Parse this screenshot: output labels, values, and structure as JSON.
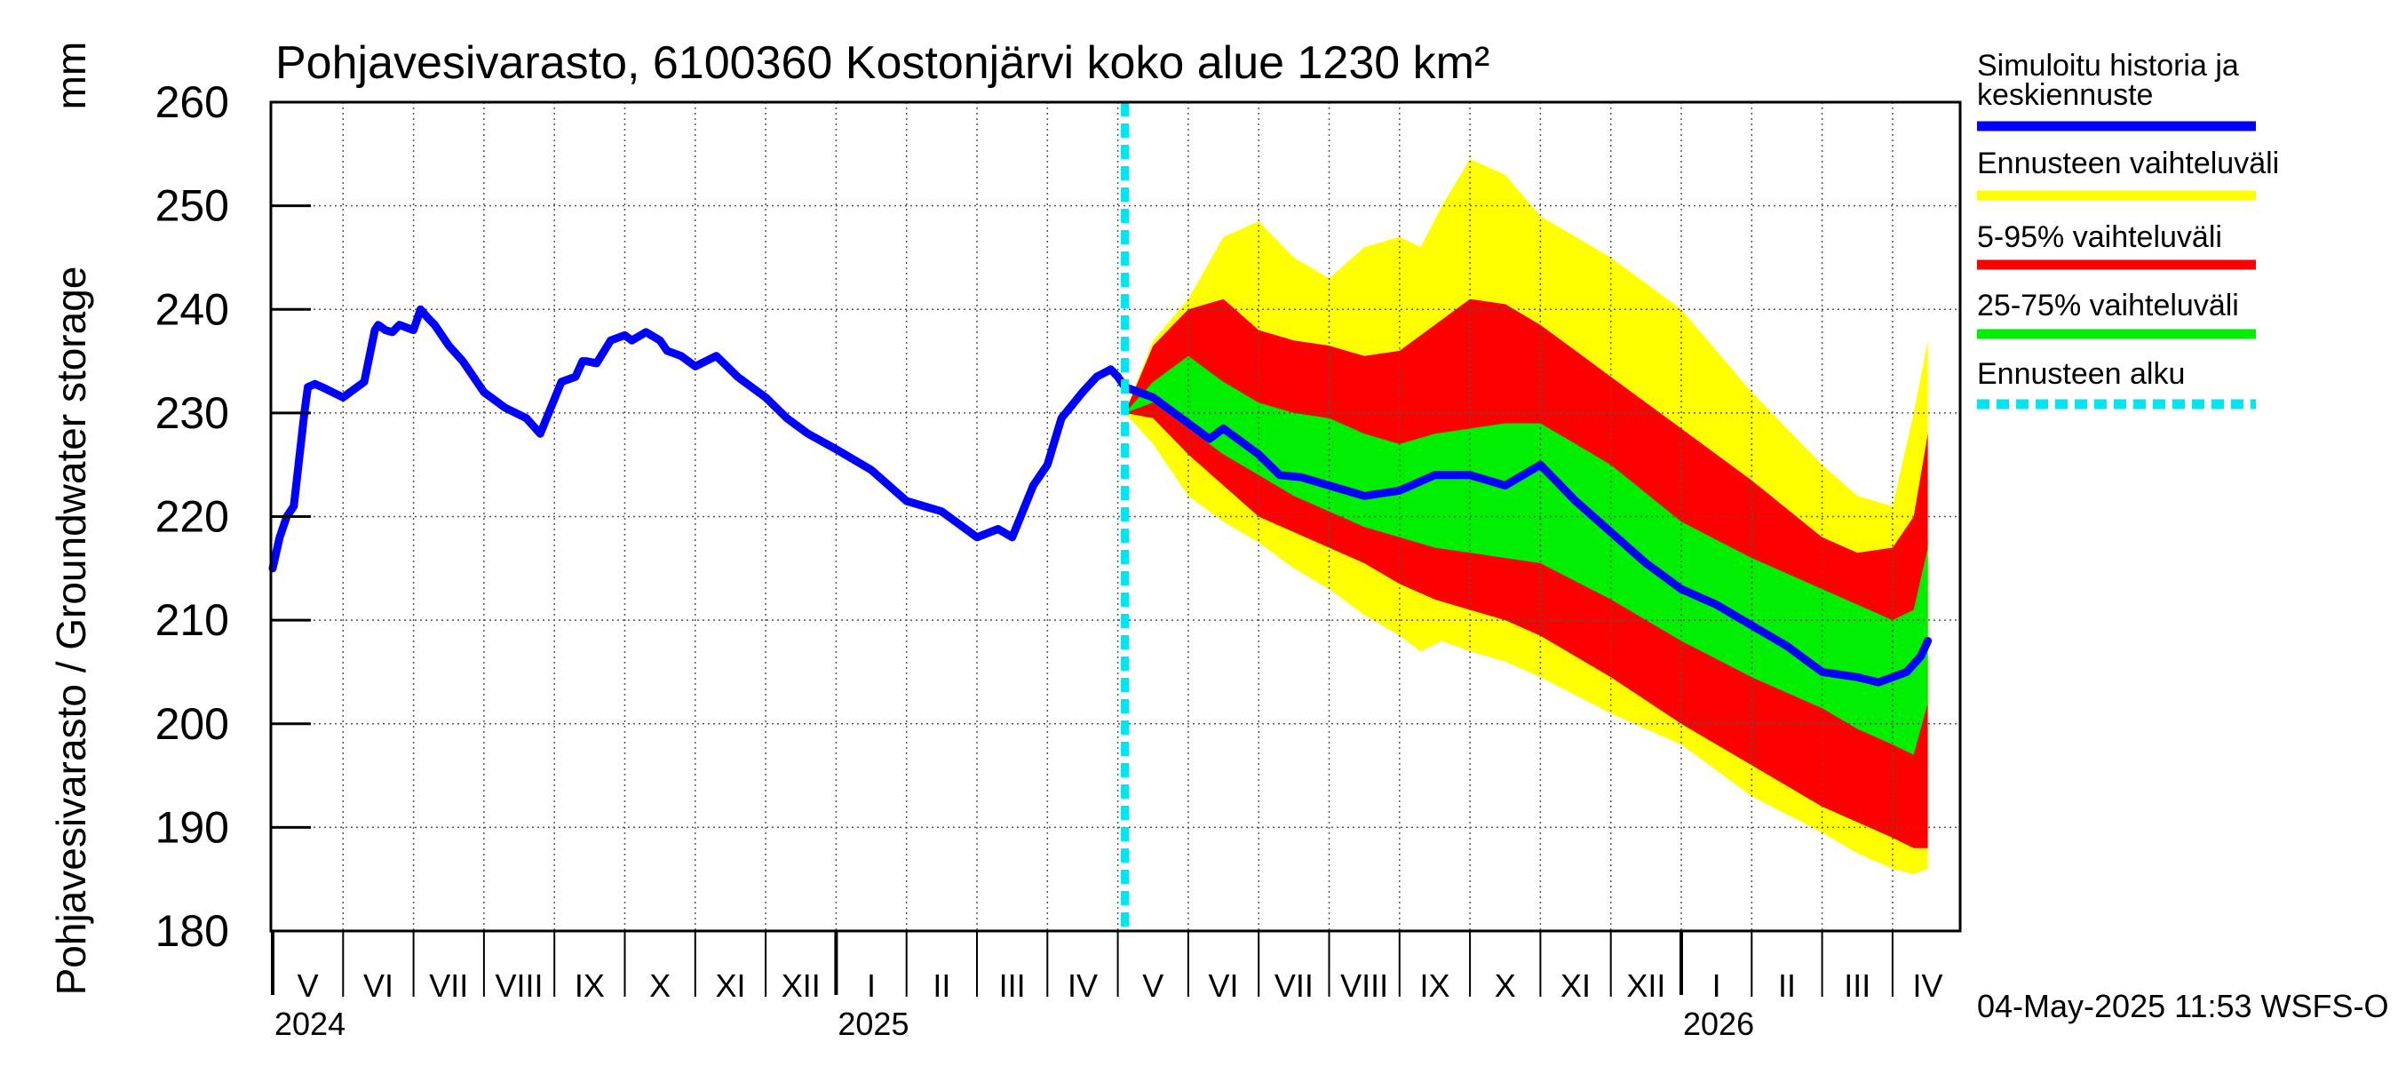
{
  "chart_data": {
    "type": "area",
    "title": "Pohjavesivarasto, 6100360 Kostonjärvi koko alue 1230 km²",
    "ylabel": "Pohjavesivarasto / Groundwater storage",
    "yunit": "mm",
    "ylim": [
      180,
      260
    ],
    "yticks": [
      180,
      190,
      200,
      210,
      220,
      230,
      240,
      250,
      260
    ],
    "grid": true,
    "x_range_months": [
      0,
      23.5
    ],
    "month_ticks": [
      {
        "label": "V",
        "m": 0
      },
      {
        "label": "VI",
        "m": 1
      },
      {
        "label": "VII",
        "m": 2
      },
      {
        "label": "VIII",
        "m": 3
      },
      {
        "label": "IX",
        "m": 4
      },
      {
        "label": "X",
        "m": 5
      },
      {
        "label": "XI",
        "m": 6
      },
      {
        "label": "XII",
        "m": 7
      },
      {
        "label": "I",
        "m": 8
      },
      {
        "label": "II",
        "m": 9
      },
      {
        "label": "III",
        "m": 10
      },
      {
        "label": "IV",
        "m": 11
      },
      {
        "label": "V",
        "m": 12
      },
      {
        "label": "VI",
        "m": 13
      },
      {
        "label": "VII",
        "m": 14
      },
      {
        "label": "VIII",
        "m": 15
      },
      {
        "label": "IX",
        "m": 16
      },
      {
        "label": "X",
        "m": 17
      },
      {
        "label": "XI",
        "m": 18
      },
      {
        "label": "XII",
        "m": 19
      },
      {
        "label": "I",
        "m": 20
      },
      {
        "label": "II",
        "m": 21
      },
      {
        "label": "III",
        "m": 22
      },
      {
        "label": "IV",
        "m": 23
      }
    ],
    "year_labels": [
      {
        "label": "2024",
        "m": 0
      },
      {
        "label": "2025",
        "m": 8
      },
      {
        "label": "2026",
        "m": 20
      }
    ],
    "forecast_start_m": 12.1,
    "legend_position": "right",
    "legend": [
      {
        "label": "Simuloitu historia ja keskiennuste",
        "lines": [
          "Simuloitu historia ja",
          "keskiennuste"
        ],
        "color": "#0000ff",
        "style": "solid"
      },
      {
        "label": "Ennusteen vaihteluväli",
        "lines": [
          "Ennusteen vaihteluväli"
        ],
        "color": "#ffff00",
        "style": "solid"
      },
      {
        "label": "5-95% vaihteluväli",
        "lines": [
          "5-95% vaihteluväli"
        ],
        "color": "#ff0000",
        "style": "solid"
      },
      {
        "label": "25-75% vaihteluväli",
        "lines": [
          "25-75% vaihteluväli"
        ],
        "color": "#00ee00",
        "style": "solid"
      },
      {
        "label": "Ennusteen alku",
        "lines": [
          "Ennusteen alku"
        ],
        "color": "#00e5ee",
        "style": "dashed"
      }
    ],
    "footer": "04-May-2025 11:53 WSFS-O",
    "series": [
      {
        "name": "Simuloitu historia ja keskiennuste",
        "color": "#0000ff",
        "x": [
          0,
          0.1,
          0.2,
          0.3,
          0.45,
          0.5,
          0.6,
          0.7,
          1.0,
          1.1,
          1.3,
          1.45,
          1.5,
          1.6,
          1.7,
          1.8,
          2.0,
          2.1,
          2.2,
          2.3,
          2.5,
          2.7,
          3.0,
          3.3,
          3.6,
          3.8,
          4.1,
          4.3,
          4.4,
          4.45,
          4.6,
          4.8,
          5.0,
          5.1,
          5.3,
          5.5,
          5.6,
          5.8,
          6.0,
          6.3,
          6.6,
          6.8,
          7.0,
          7.3,
          7.6,
          8.0,
          8.5,
          9.0,
          9.5,
          10.0,
          10.3,
          10.5,
          10.8,
          11.0,
          11.2,
          11.5,
          11.7,
          11.9,
          12.0,
          12.1,
          12.3,
          12.5,
          12.8,
          13.0,
          13.3,
          13.5,
          14.0,
          14.3,
          14.6,
          15.0,
          15.5,
          16.0,
          16.5,
          17.0,
          17.5,
          18.0,
          18.5,
          19.0,
          19.5,
          20.0,
          20.5,
          21.0,
          21.5,
          22.0,
          22.5,
          22.8,
          23.0,
          23.2,
          23.4,
          23.5
        ],
        "y": [
          215,
          218,
          220,
          221,
          230,
          232.5,
          232.8,
          232.5,
          231.5,
          232,
          233,
          238,
          238.5,
          238,
          237.8,
          238.5,
          238,
          240,
          239.2,
          238.5,
          236.5,
          235,
          232,
          230.5,
          229.5,
          228,
          233,
          233.5,
          235,
          235,
          234.8,
          237,
          237.5,
          237,
          237.8,
          237,
          236,
          235.5,
          234.5,
          235.5,
          233.5,
          232.5,
          231.5,
          229.5,
          228,
          226.5,
          224.5,
          221.5,
          220.5,
          218,
          218.8,
          218,
          223,
          225,
          229.5,
          232,
          233.5,
          234.2,
          233.5,
          232.5,
          232,
          231.5,
          230,
          229,
          227.5,
          228.5,
          226,
          224,
          223.8,
          223,
          222,
          222.5,
          224,
          224,
          223,
          225,
          221.5,
          218.5,
          215.5,
          213,
          211.5,
          209.5,
          207.5,
          205,
          204.5,
          204,
          204.5,
          205,
          206.5,
          208
        ]
      }
    ],
    "bands": [
      {
        "name": "Ennusteen vaihteluväli",
        "color": "#ffff00",
        "x": [
          12.1,
          12.5,
          13.0,
          13.5,
          14.0,
          14.5,
          15.0,
          15.5,
          16.0,
          16.3,
          16.6,
          17.0,
          17.5,
          18.0,
          19.0,
          20.0,
          21.0,
          22.0,
          22.5,
          23.0,
          23.3,
          23.5
        ],
        "upper": [
          230,
          237,
          241,
          247,
          248.5,
          245,
          243,
          246,
          247,
          246,
          250,
          254.5,
          253,
          249,
          245,
          240,
          232,
          225,
          222,
          221,
          230,
          237
        ],
        "lower": [
          230,
          227,
          222,
          219.5,
          217.5,
          215,
          213,
          210.5,
          208.5,
          207,
          208,
          207,
          206,
          204.5,
          201,
          198,
          193,
          189.5,
          187.5,
          186,
          185.5,
          186
        ]
      },
      {
        "name": "5-95% vaihteluväli",
        "color": "#ff0000",
        "x": [
          12.1,
          12.5,
          13.0,
          13.5,
          14.0,
          14.5,
          15.0,
          15.5,
          16.0,
          16.5,
          17.0,
          17.5,
          18.0,
          19.0,
          20.0,
          21.0,
          22.0,
          22.5,
          23.0,
          23.3,
          23.5
        ],
        "upper": [
          230,
          236.5,
          240,
          241,
          238,
          237,
          236.5,
          235.5,
          236,
          238.5,
          241,
          240.5,
          238.5,
          233.5,
          228.5,
          223.5,
          218,
          216.5,
          217,
          220,
          228
        ],
        "lower": [
          230,
          229.5,
          226,
          223,
          220,
          218.5,
          217,
          215.5,
          213.5,
          212,
          211,
          210,
          208.5,
          204.5,
          200,
          196,
          192,
          190.5,
          189,
          188,
          188
        ]
      },
      {
        "name": "25-75% vaihteluväli",
        "color": "#00ee00",
        "x": [
          12.1,
          12.5,
          13.0,
          13.5,
          14.0,
          14.5,
          15.0,
          15.5,
          16.0,
          16.5,
          17.0,
          17.5,
          18.0,
          19.0,
          20.0,
          21.0,
          22.0,
          22.5,
          23.0,
          23.3,
          23.5
        ],
        "upper": [
          230,
          233,
          235.5,
          233,
          231,
          230,
          229.5,
          228,
          227,
          228,
          228.5,
          229,
          229,
          225,
          219.5,
          216,
          213,
          211.5,
          210,
          211,
          217
        ],
        "lower": [
          230,
          231,
          228.5,
          226,
          224,
          222,
          220.5,
          219,
          218,
          217,
          216.5,
          216,
          215.5,
          212,
          208,
          204.5,
          201.5,
          199.5,
          198,
          197,
          202
        ]
      }
    ]
  }
}
